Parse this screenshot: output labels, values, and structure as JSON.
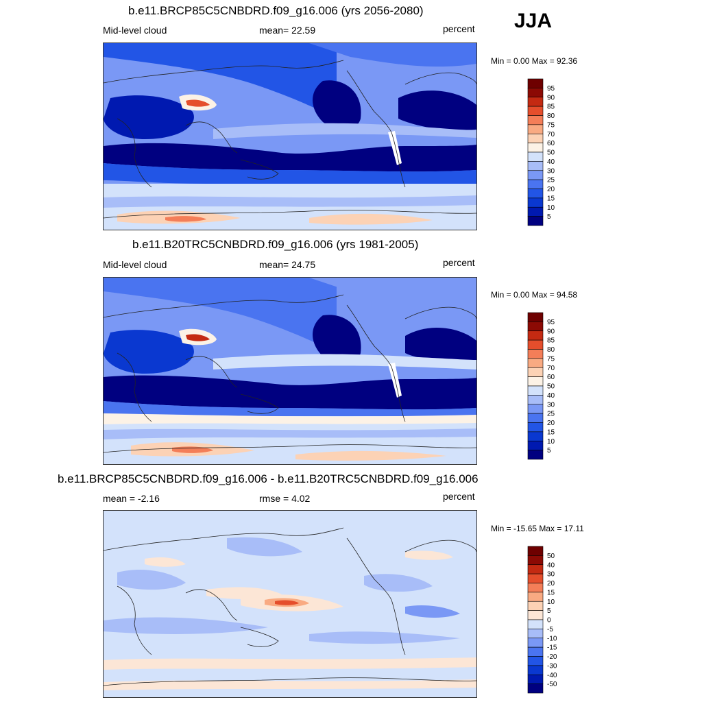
{
  "season": "JJA",
  "panels": [
    {
      "title": "b.e11.BRCP85C5CNBDRD.f09_g16.006 (yrs 2056-2080)",
      "left_label": "Mid-level cloud",
      "center_label": "mean=  22.59",
      "right_label": "percent",
      "minmax": "Min =   0.00 Max =  92.36"
    },
    {
      "title": "b.e11.B20TRC5CNBDRD.f09_g16.006 (yrs 1981-2005)",
      "left_label": "Mid-level cloud",
      "center_label": "mean=  24.75",
      "right_label": "percent",
      "minmax": "Min =   0.00 Max =  94.58"
    },
    {
      "title": "b.e11.BRCP85C5CNBDRD.f09_g16.006 - b.e11.B20TRC5CNBDRD.f09_g16.006",
      "left_label": "mean =  -2.16",
      "center_label": "rmse =   4.02",
      "right_label": "percent",
      "minmax": "Min = -15.65 Max =  17.11"
    }
  ],
  "chart_data": [
    {
      "type": "heatmap",
      "title": "b.e11.BRCP85C5CNBDRD.f09_g16.006 (yrs 2056-2080)",
      "field": "Mid-level cloud",
      "units": "percent",
      "mean": 22.59,
      "min": 0.0,
      "max": 92.36,
      "colorbar": {
        "levels": [
          5,
          10,
          15,
          20,
          25,
          30,
          40,
          50,
          60,
          70,
          75,
          80,
          85,
          90,
          95
        ],
        "colors": [
          "#000080",
          "#0019b0",
          "#0a38d0",
          "#2255e6",
          "#4a74f0",
          "#7a98f5",
          "#a8bdf8",
          "#d3e2fb",
          "#fcf2e6",
          "#fcd2b5",
          "#f9aa82",
          "#f47e58",
          "#e54e2c",
          "#c42a12",
          "#8c0a04",
          "#6e0000"
        ]
      }
    },
    {
      "type": "heatmap",
      "title": "b.e11.B20TRC5CNBDRD.f09_g16.006 (yrs 1981-2005)",
      "field": "Mid-level cloud",
      "units": "percent",
      "mean": 24.75,
      "min": 0.0,
      "max": 94.58,
      "colorbar": {
        "levels": [
          5,
          10,
          15,
          20,
          25,
          30,
          40,
          50,
          60,
          70,
          75,
          80,
          85,
          90,
          95
        ],
        "colors": [
          "#000080",
          "#0019b0",
          "#0a38d0",
          "#2255e6",
          "#4a74f0",
          "#7a98f5",
          "#a8bdf8",
          "#d3e2fb",
          "#fcf2e6",
          "#fcd2b5",
          "#f9aa82",
          "#f47e58",
          "#e54e2c",
          "#c42a12",
          "#8c0a04",
          "#6e0000"
        ]
      }
    },
    {
      "type": "heatmap",
      "title": "b.e11.BRCP85C5CNBDRD.f09_g16.006 - b.e11.B20TRC5CNBDRD.f09_g16.006",
      "units": "percent",
      "mean": -2.16,
      "rmse": 4.02,
      "min": -15.65,
      "max": 17.11,
      "colorbar": {
        "levels": [
          -50,
          -40,
          -30,
          -20,
          -15,
          -10,
          -5,
          0,
          5,
          10,
          15,
          20,
          30,
          40,
          50
        ],
        "colors": [
          "#000080",
          "#0019b0",
          "#0a38d0",
          "#2255e6",
          "#4a74f0",
          "#7a98f5",
          "#a8bdf8",
          "#d3e2fb",
          "#fce6d6",
          "#fcd2b5",
          "#f9aa82",
          "#f47e58",
          "#e54e2c",
          "#c42a12",
          "#8c0a04",
          "#6e0000"
        ]
      }
    }
  ]
}
